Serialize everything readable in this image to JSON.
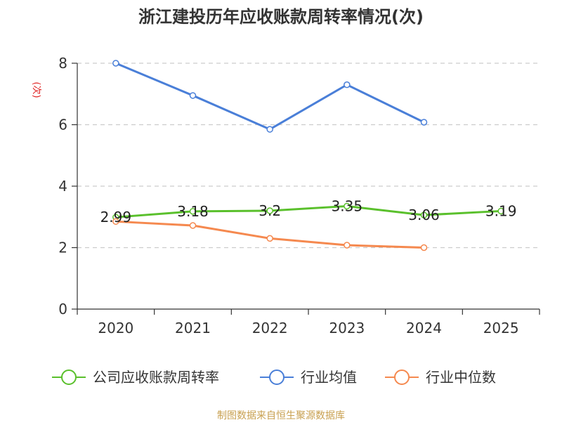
{
  "chart_data": {
    "type": "line",
    "title": "浙江建投历年应收账款周转率情况(次)",
    "ylabel": "(次)",
    "xlabel": "",
    "categories": [
      "2020",
      "2021",
      "2022",
      "2023",
      "2024",
      "2025"
    ],
    "ylim": [
      0,
      8
    ],
    "yticks": [
      0,
      2,
      4,
      6,
      8
    ],
    "grid": true,
    "legend_position": "bottom",
    "series": [
      {
        "name": "公司应收账款周转率",
        "color": "#5ac02c",
        "values": [
          2.99,
          3.18,
          3.2,
          3.35,
          3.06,
          3.19
        ],
        "labels": [
          "2.99",
          "3.18",
          "3.2",
          "3.35",
          "3.06",
          "3.19"
        ]
      },
      {
        "name": "行业均值",
        "color": "#4a7fd8",
        "values": [
          8.0,
          6.95,
          5.85,
          7.3,
          6.08,
          null
        ]
      },
      {
        "name": "行业中位数",
        "color": "#f5894f",
        "values": [
          2.85,
          2.72,
          2.3,
          2.08,
          2.0,
          null
        ]
      }
    ]
  },
  "source_text": "制图数据来自恒生聚源数据库"
}
